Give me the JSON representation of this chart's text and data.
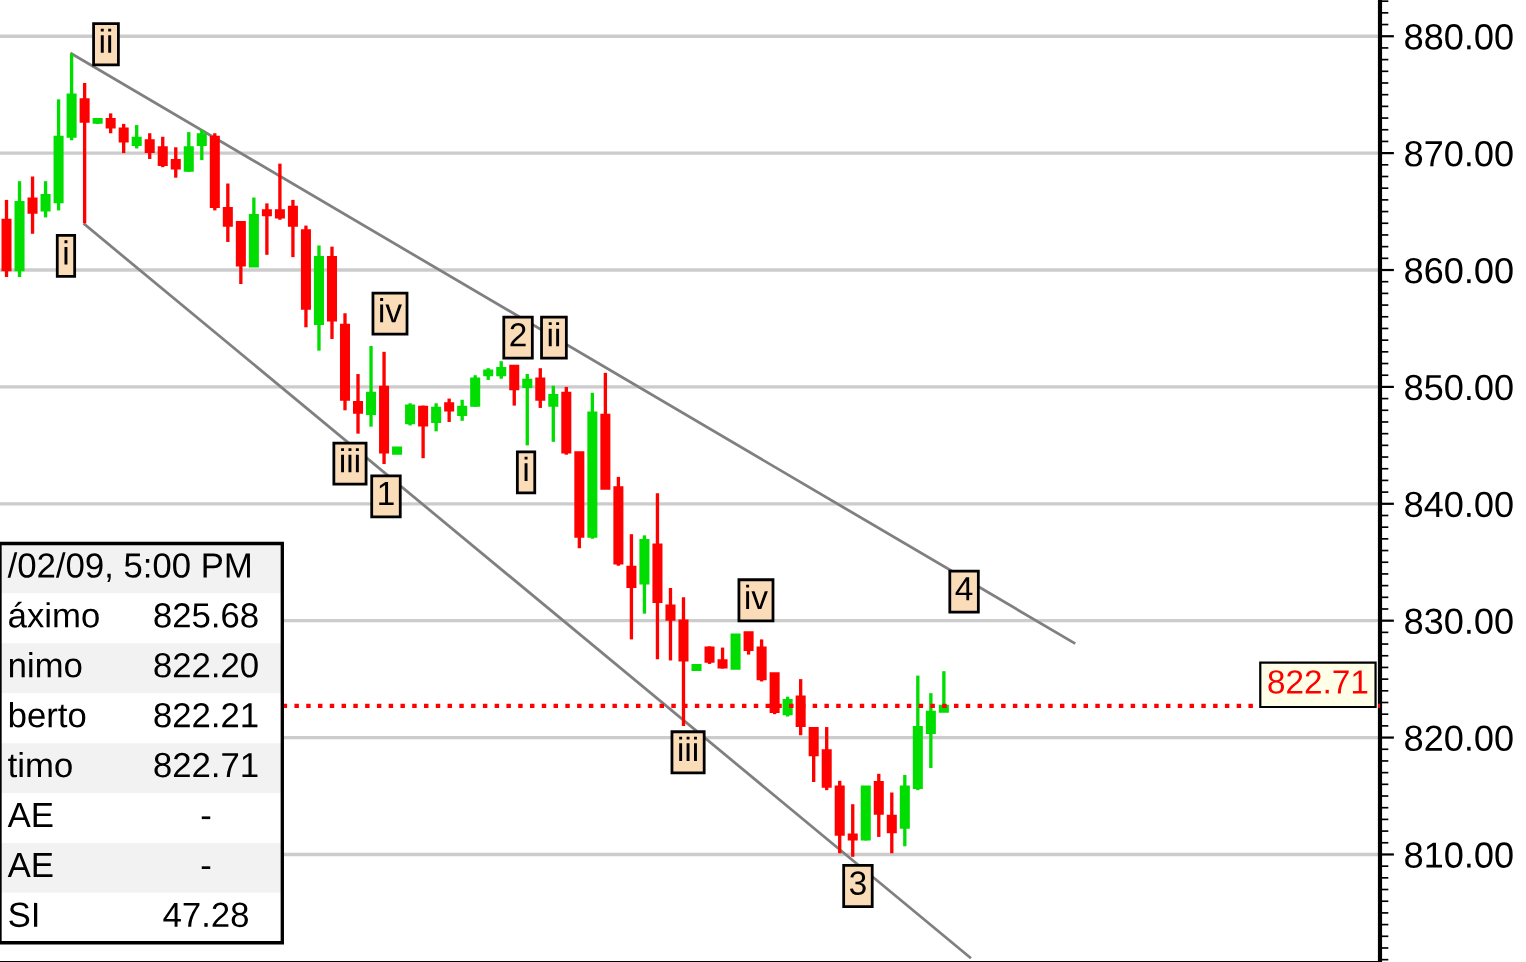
{
  "chart_data": {
    "type": "candlestick",
    "categories": [
      null,
      null,
      null,
      null,
      null,
      null,
      null,
      null,
      null,
      null,
      null,
      null,
      null,
      null,
      null,
      null,
      null,
      null,
      null,
      null,
      null,
      null,
      null,
      null,
      null,
      null,
      null,
      null,
      null,
      null,
      null,
      null,
      null,
      null,
      null,
      null,
      null,
      null,
      null,
      null,
      null,
      null,
      null,
      null,
      null,
      null,
      null,
      null,
      null,
      null,
      null,
      null,
      null,
      null,
      null,
      null,
      null,
      null,
      null,
      null,
      null,
      null,
      null,
      null,
      null,
      null,
      null,
      null,
      null,
      null,
      null,
      null,
      null,
      null,
      null,
      null,
      null,
      null,
      null,
      null,
      null,
      null,
      null,
      null,
      null,
      null,
      null,
      null,
      null,
      null,
      null,
      null,
      null,
      null,
      null,
      null,
      null,
      null,
      null,
      null,
      null,
      null,
      null,
      null,
      null,
      null
    ],
    "ohlc": [
      [
        864.3,
        866.0,
        859.4,
        860.0
      ],
      [
        860.0,
        867.6,
        859.4,
        865.8
      ],
      [
        866.1,
        868.0,
        863.1,
        864.9
      ],
      [
        865.1,
        867.6,
        864.5,
        866.4
      ],
      [
        865.8,
        874.6,
        865.1,
        871.4
      ],
      [
        871.4,
        878.5,
        871.1,
        875.0
      ],
      [
        874.6,
        876.0,
        864.0,
        872.7
      ],
      [
        872.6,
        873.0,
        872.5,
        872.9
      ],
      [
        872.9,
        873.4,
        871.7,
        872.2
      ],
      [
        872.1,
        872.5,
        870.0,
        871.0
      ],
      [
        870.7,
        872.4,
        870.4,
        871.3
      ],
      [
        871.1,
        871.7,
        869.5,
        870.1
      ],
      [
        870.5,
        871.4,
        868.8,
        869.0
      ],
      [
        869.4,
        870.5,
        867.9,
        868.7
      ],
      [
        868.5,
        871.8,
        868.4,
        870.5
      ],
      [
        870.7,
        872.0,
        869.4,
        871.6
      ],
      [
        871.4,
        871.7,
        865.1,
        865.4
      ],
      [
        865.3,
        867.4,
        862.4,
        863.8
      ],
      [
        864.1,
        864.1,
        858.8,
        860.4
      ],
      [
        860.3,
        866.2,
        860.3,
        864.7
      ],
      [
        865.1,
        865.7,
        861.3,
        864.7
      ],
      [
        865.1,
        869.1,
        864.3,
        864.5
      ],
      [
        865.4,
        866.0,
        861.1,
        863.8
      ],
      [
        863.4,
        863.8,
        855.1,
        856.7
      ],
      [
        855.4,
        862.1,
        853.1,
        861.1
      ],
      [
        861.1,
        862.0,
        854.1,
        855.7
      ],
      [
        855.3,
        856.3,
        848.0,
        848.9
      ],
      [
        848.7,
        851.1,
        846.0,
        847.8
      ],
      [
        847.7,
        853.5,
        846.6,
        849.5
      ],
      [
        850.0,
        853.0,
        843.4,
        844.4
      ],
      [
        844.3,
        844.8,
        844.3,
        844.8
      ],
      [
        846.9,
        848.6,
        846.7,
        848.4
      ],
      [
        848.3,
        848.4,
        843.9,
        846.7
      ],
      [
        847.0,
        848.6,
        846.2,
        848.2
      ],
      [
        848.6,
        849.0,
        847.0,
        848.0
      ],
      [
        847.6,
        848.9,
        847.1,
        848.3
      ],
      [
        848.4,
        851.0,
        848.3,
        850.7
      ],
      [
        851.0,
        851.6,
        850.6,
        851.4
      ],
      [
        851.0,
        852.2,
        850.7,
        851.6
      ],
      [
        851.8,
        851.8,
        848.4,
        849.8
      ],
      [
        850.0,
        851.1,
        845.0,
        850.6
      ],
      [
        850.7,
        851.6,
        848.2,
        848.9
      ],
      [
        848.4,
        850.1,
        845.3,
        849.3
      ],
      [
        849.5,
        850.0,
        844.2,
        844.4
      ],
      [
        844.4,
        844.4,
        836.2,
        837.2
      ],
      [
        837.2,
        849.5,
        837.0,
        847.8
      ],
      [
        847.6,
        851.2,
        841.3,
        841.3
      ],
      [
        841.4,
        842.3,
        834.7,
        834.9
      ],
      [
        834.6,
        837.4,
        828.4,
        832.9
      ],
      [
        833.2,
        837.3,
        830.6,
        836.9
      ],
      [
        836.5,
        840.9,
        826.7,
        831.6
      ],
      [
        831.3,
        832.8,
        826.6,
        830.1
      ],
      [
        830.0,
        832.0,
        821.0,
        826.6
      ],
      [
        825.8,
        826.2,
        825.8,
        826.2
      ],
      [
        827.7,
        827.8,
        826.3,
        826.5
      ],
      [
        826.6,
        827.7,
        825.9,
        826.0
      ],
      [
        825.9,
        828.8,
        825.9,
        828.8
      ],
      [
        829.0,
        829.0,
        827.1,
        827.5
      ],
      [
        827.7,
        828.4,
        824.8,
        825.0
      ],
      [
        825.5,
        825.5,
        822.0,
        822.2
      ],
      [
        822.0,
        823.5,
        821.8,
        823.2
      ],
      [
        823.5,
        825.0,
        820.2,
        821.0
      ],
      [
        820.8,
        820.8,
        816.2,
        818.5
      ],
      [
        818.9,
        820.9,
        815.5,
        815.8
      ],
      [
        815.8,
        816.3,
        810.1,
        811.7
      ],
      [
        811.7,
        814.3,
        809.8,
        811.3
      ],
      [
        811.3,
        815.8,
        811.2,
        815.8
      ],
      [
        816.2,
        816.9,
        811.5,
        813.5
      ],
      [
        813.3,
        815.3,
        810.1,
        811.9
      ],
      [
        812.3,
        816.8,
        810.7,
        815.8
      ],
      [
        815.7,
        825.3,
        815.5,
        820.9
      ],
      [
        820.4,
        823.8,
        817.4,
        822.2
      ],
      [
        822.21,
        825.68,
        822.2,
        822.71
      ],
      null,
      null,
      null,
      null,
      null,
      null,
      null,
      null,
      null,
      null,
      null,
      null,
      null,
      null,
      null,
      null,
      null,
      null,
      null,
      null,
      null,
      null,
      null,
      null,
      null,
      null,
      null,
      null,
      null,
      null,
      null,
      null,
      null
    ],
    "colors": [
      "#ff0000",
      "#00dd00",
      "#ff0000",
      "#00dd00",
      "#00dd00",
      "#00dd00",
      "#ff0000",
      "#00dd00",
      "#ff0000",
      "#ff0000",
      "#00dd00",
      "#ff0000",
      "#ff0000",
      "#ff0000",
      "#00dd00",
      "#00dd00",
      "#ff0000",
      "#ff0000",
      "#ff0000",
      "#00dd00",
      "#ff0000",
      "#ff0000",
      "#ff0000",
      "#ff0000",
      "#00dd00",
      "#ff0000",
      "#ff0000",
      "#ff0000",
      "#00dd00",
      "#ff0000",
      "#00dd00",
      "#00dd00",
      "#ff0000",
      "#00dd00",
      "#ff0000",
      "#00dd00",
      "#00dd00",
      "#00dd00",
      "#00dd00",
      "#ff0000",
      "#00dd00",
      "#ff0000",
      "#00dd00",
      "#ff0000",
      "#ff0000",
      "#00dd00",
      "#ff0000",
      "#ff0000",
      "#ff0000",
      "#00dd00",
      "#ff0000",
      "#ff0000",
      "#ff0000",
      "#00dd00",
      "#ff0000",
      "#ff0000",
      "#00dd00",
      "#ff0000",
      "#ff0000",
      "#ff0000",
      "#00dd00",
      "#ff0000",
      "#ff0000",
      "#ff0000",
      "#ff0000",
      "#ff0000",
      "#00dd00",
      "#ff0000",
      "#ff0000",
      "#00dd00",
      "#00dd00",
      "#00dd00",
      "#00dd00",
      null,
      null,
      null,
      null,
      null,
      null,
      null,
      null,
      null,
      null,
      null,
      null,
      null,
      null,
      null,
      null,
      null,
      null,
      null,
      null,
      null,
      null,
      null,
      null,
      null,
      null,
      null,
      null,
      null,
      null,
      null,
      null,
      null
    ],
    "series": [
      {
        "type": "line",
        "color": "#808080",
        "values": [
          null,
          null,
          null,
          null,
          null,
          878.5,
          null,
          null,
          null,
          null,
          null,
          null,
          null,
          null,
          null,
          null,
          null,
          null,
          null,
          null,
          null,
          null,
          null,
          null,
          null,
          null,
          null,
          null,
          null,
          null,
          null,
          null,
          null,
          null,
          null,
          null,
          null,
          null,
          null,
          null,
          null,
          null,
          null,
          null,
          null,
          null,
          null,
          null,
          null,
          null,
          null,
          null,
          null,
          null,
          null,
          null,
          null,
          null,
          null,
          null,
          null,
          null,
          null,
          null,
          null,
          null,
          null,
          null,
          null,
          null,
          null,
          null,
          null,
          null,
          null,
          null,
          null,
          null,
          null,
          null,
          null,
          null,
          828.1,
          null,
          null,
          null,
          null,
          null,
          null,
          null,
          null,
          null,
          null,
          null,
          null,
          null,
          null,
          null,
          null,
          null,
          null,
          null,
          null,
          null,
          null,
          null
        ]
      },
      {
        "type": "line",
        "color": "#808080",
        "values": [
          null,
          null,
          null,
          null,
          null,
          null,
          863.9,
          null,
          null,
          null,
          null,
          null,
          null,
          null,
          null,
          null,
          null,
          null,
          null,
          null,
          null,
          null,
          null,
          null,
          null,
          null,
          null,
          null,
          null,
          null,
          null,
          null,
          null,
          null,
          null,
          null,
          null,
          null,
          null,
          null,
          null,
          null,
          null,
          null,
          null,
          null,
          null,
          null,
          null,
          null,
          null,
          null,
          null,
          null,
          null,
          null,
          null,
          null,
          null,
          null,
          null,
          null,
          null,
          null,
          null,
          null,
          null,
          null,
          null,
          null,
          null,
          null,
          null,
          null,
          801.2,
          null,
          null,
          null,
          null,
          null,
          null,
          null,
          null,
          null,
          null,
          null,
          null,
          null,
          null,
          null,
          null,
          null,
          null,
          null,
          null,
          null,
          null,
          null,
          null,
          null,
          null,
          null,
          null,
          null,
          null,
          null
        ]
      }
    ],
    "ylim": [
      800.8,
      883.1
    ],
    "yticks": [
      {
        "value": 810,
        "label": "810.00"
      },
      {
        "value": 820,
        "label": "820.00"
      },
      {
        "value": 830,
        "label": "830.00"
      },
      {
        "value": 840,
        "label": "840.00"
      },
      {
        "value": 850,
        "label": "850.00"
      },
      {
        "value": 860,
        "label": "860.00"
      },
      {
        "value": 870,
        "label": "870.00"
      },
      {
        "value": 880,
        "label": "880.00"
      }
    ],
    "tick_labels": "y",
    "grid": "y",
    "ref_lines": [
      {
        "axis": "y",
        "value": 822.71,
        "label": "822.71",
        "color": "#ff0000",
        "line_style": "dotted"
      }
    ],
    "annotations": [
      "ii",
      "i",
      "iv",
      "iii",
      "1",
      "2",
      "ii",
      "i",
      "iv",
      "iii",
      "3",
      "4",
      "/02/09, 5:00 PM",
      "áximo",
      "825.68",
      "nimo",
      "822.20",
      "berto",
      "822.21",
      "timo",
      "822.71",
      "AE",
      "-",
      "AE",
      "-",
      "SI",
      "47.28"
    ]
  }
}
